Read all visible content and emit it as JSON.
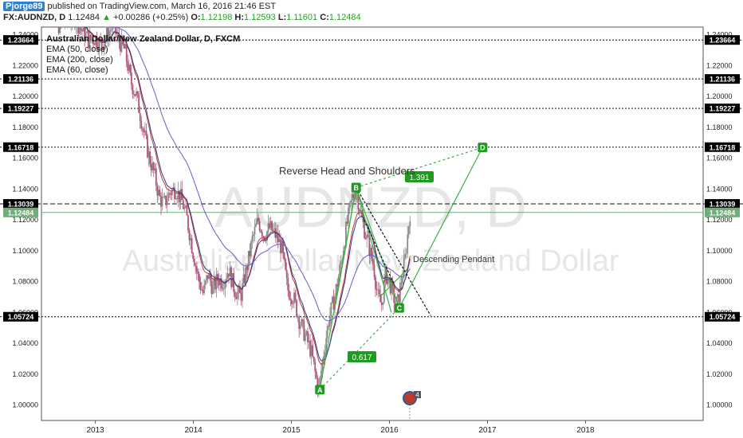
{
  "header": {
    "username": "Pjorge89",
    "published": "published on TradingView.com, March 16, 2016 21:46 EST",
    "symbol": "FX:AUDNZD, D",
    "last": "1.12484",
    "change_arrow": "▲",
    "change": "+0.00286 (+0.25%)",
    "o_label": "O:",
    "o": "1.12198",
    "h_label": "H:",
    "h": "1.12593",
    "l_label": "L:",
    "l": "1.11601",
    "c_label": "C:",
    "c": "1.12484"
  },
  "colors": {
    "green": "#1f9b1f",
    "pattern_green": "#3cb043",
    "up_candle": "#8b8b8b",
    "down_candle": "#b0547a",
    "ema50": "#c0392b",
    "ema200": "#6a5acd",
    "ema60": "#2e3b8f",
    "last_price_bg": "#6fae7a",
    "dashed": "#111111",
    "watermark": "#e6e6e6"
  },
  "chart_data": {
    "type": "candlestick",
    "title": "Australian Dollar/New Zealand Dollar, D, FXCM",
    "legend": [
      "EMA (50, close)",
      "EMA (200, close)",
      "EMA (60, close)"
    ],
    "watermark": {
      "symbol": "AUDNZD, D",
      "name": "Australian Dollar/New Zealand Dollar"
    },
    "x_ticks": [
      "2013",
      "2014",
      "2015",
      "2016",
      "2017",
      "2018"
    ],
    "x_range": [
      2012.45,
      2019.2
    ],
    "y_range": [
      0.99,
      1.245
    ],
    "y_ticks": [
      "1.24000",
      "1.22000",
      "1.20000",
      "1.18000",
      "1.16000",
      "1.14000",
      "1.12000",
      "1.10000",
      "1.08000",
      "1.06000",
      "1.04000",
      "1.02000",
      "1.00000"
    ],
    "horizontal_levels": [
      "1.23664",
      "1.21136",
      "1.19227",
      "1.16718",
      "1.13039",
      "1.05724"
    ],
    "last_price": "1.12484",
    "price_path": [
      [
        2012.45,
        1.263
      ],
      [
        2012.55,
        1.255
      ],
      [
        2012.62,
        1.246
      ],
      [
        2012.7,
        1.249
      ],
      [
        2012.78,
        1.252
      ],
      [
        2012.86,
        1.243
      ],
      [
        2012.94,
        1.236
      ],
      [
        2013.0,
        1.238
      ],
      [
        2013.06,
        1.233
      ],
      [
        2013.12,
        1.24
      ],
      [
        2013.18,
        1.246
      ],
      [
        2013.24,
        1.236
      ],
      [
        2013.3,
        1.23
      ],
      [
        2013.36,
        1.21
      ],
      [
        2013.42,
        1.2
      ],
      [
        2013.5,
        1.175
      ],
      [
        2013.55,
        1.16
      ],
      [
        2013.6,
        1.15
      ],
      [
        2013.65,
        1.135
      ],
      [
        2013.7,
        1.13
      ],
      [
        2013.76,
        1.138
      ],
      [
        2013.82,
        1.14
      ],
      [
        2013.88,
        1.133
      ],
      [
        2013.93,
        1.122
      ],
      [
        2014.0,
        1.098
      ],
      [
        2014.05,
        1.082
      ],
      [
        2014.1,
        1.072
      ],
      [
        2014.15,
        1.085
      ],
      [
        2014.2,
        1.075
      ],
      [
        2014.25,
        1.082
      ],
      [
        2014.3,
        1.08
      ],
      [
        2014.36,
        1.088
      ],
      [
        2014.42,
        1.075
      ],
      [
        2014.48,
        1.07
      ],
      [
        2014.54,
        1.087
      ],
      [
        2014.6,
        1.107
      ],
      [
        2014.66,
        1.12
      ],
      [
        2014.72,
        1.11
      ],
      [
        2014.78,
        1.115
      ],
      [
        2014.84,
        1.11
      ],
      [
        2014.9,
        1.102
      ],
      [
        2014.96,
        1.075
      ],
      [
        2015.02,
        1.07
      ],
      [
        2015.08,
        1.055
      ],
      [
        2015.14,
        1.045
      ],
      [
        2015.2,
        1.035
      ],
      [
        2015.25,
        1.018
      ],
      [
        2015.28,
        1.01
      ],
      [
        2015.32,
        1.03
      ],
      [
        2015.38,
        1.055
      ],
      [
        2015.44,
        1.07
      ],
      [
        2015.5,
        1.09
      ],
      [
        2015.56,
        1.115
      ],
      [
        2015.62,
        1.135
      ],
      [
        2015.66,
        1.14
      ],
      [
        2015.72,
        1.12
      ],
      [
        2015.78,
        1.105
      ],
      [
        2015.84,
        1.09
      ],
      [
        2015.88,
        1.07
      ],
      [
        2015.92,
        1.065
      ],
      [
        2015.96,
        1.085
      ],
      [
        2016.0,
        1.08
      ],
      [
        2016.04,
        1.07
      ],
      [
        2016.08,
        1.065
      ],
      [
        2016.12,
        1.08
      ],
      [
        2016.16,
        1.095
      ],
      [
        2016.21,
        1.125
      ]
    ],
    "pattern_points": [
      {
        "label": "A",
        "x": 2015.29,
        "y": 1.01
      },
      {
        "label": "B",
        "x": 2015.66,
        "y": 1.141
      },
      {
        "label": "C",
        "x": 2016.1,
        "y": 1.063
      },
      {
        "label": "D",
        "x": 2016.95,
        "y": 1.167
      }
    ],
    "fib_labels": [
      "0.617",
      "1.391"
    ],
    "annotations": [
      "Reverse Head and Shoulders",
      "Descending Pendant"
    ],
    "event_badge": "4"
  }
}
